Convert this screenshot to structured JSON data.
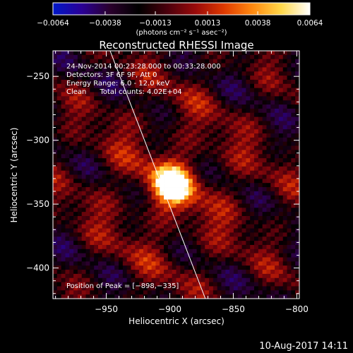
{
  "chart_data": {
    "type": "heatmap",
    "title": "Reconstructed RHESSI Image",
    "xlabel": "Heliocentric X (arcsec)",
    "ylabel": "Heliocentric Y (arcsec)",
    "xlim": [
      -992,
      -798
    ],
    "ylim": [
      -424,
      -230
    ],
    "x_ticks": [
      -950,
      -900,
      -850,
      -800
    ],
    "x_tick_labels": [
      "−950",
      "−900",
      "−850",
      "−800"
    ],
    "y_ticks": [
      -250,
      -300,
      -350,
      -400
    ],
    "y_tick_labels": [
      "−250",
      "−300",
      "−350",
      "−400"
    ],
    "grid": false,
    "peak": {
      "x": -898,
      "y": -335
    },
    "colorbar": {
      "range": [
        -0.0064,
        0.0064
      ],
      "ticks": [
        -0.0064,
        -0.0038,
        -0.0013,
        0.0013,
        0.0038,
        0.0064
      ],
      "tick_labels": [
        "−0.0064",
        "−0.0038",
        "−0.0013",
        "0.0013",
        "0.0038",
        "0.0064"
      ],
      "unit_label": "(photons cm⁻² s⁻¹ asec⁻²)",
      "colors": [
        "#0018c8",
        "#2a0096",
        "#2a002c",
        "#000000",
        "#4a000c",
        "#9a0a0a",
        "#e03a00",
        "#ff8a10",
        "#ffd84a",
        "#ffffff"
      ]
    },
    "limb_line": [
      [
        -947,
        -230
      ],
      [
        -872,
        -424
      ]
    ],
    "annotations": [
      "24-Nov-2014 00:23:28.000 to 00:33:28.000",
      "Detectors: 3F 6F 9F, Att 0",
      "Energy Range: 6.0 - 12.0 keV",
      "Clean      Total counts: 4.02E+04"
    ],
    "peak_label": "Position of Peak = [−898,−335]"
  },
  "footer": {
    "date": "10-Aug-2017 14:11"
  }
}
